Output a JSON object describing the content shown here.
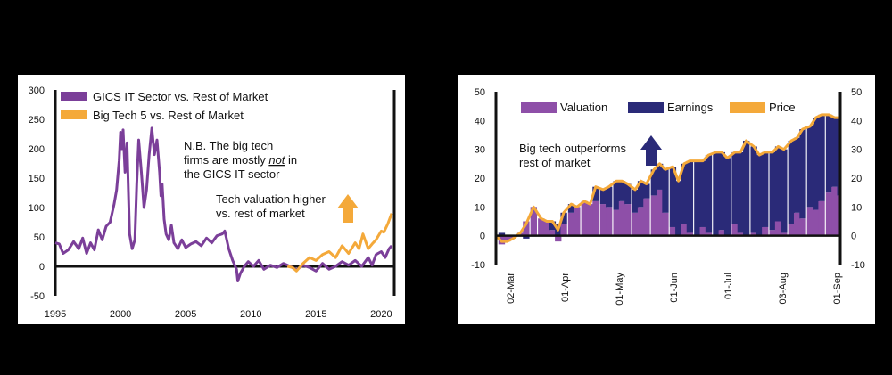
{
  "chart_data": [
    {
      "type": "line",
      "title": "",
      "xlabel": "",
      "ylabel": "",
      "xlim": [
        1995,
        2021
      ],
      "ylim": [
        -50,
        300
      ],
      "yticks": [
        300,
        250,
        200,
        150,
        100,
        50,
        0,
        -50
      ],
      "yticks_right": [
        300,
        250,
        200,
        150,
        100,
        50,
        0,
        -50
      ],
      "xticks": [
        1995,
        2000,
        2005,
        2010,
        2015,
        2020
      ],
      "grid": false,
      "legend_position": "top-left",
      "series": [
        {
          "name": "GICS IT Sector vs. Rest of Market",
          "color": "#7b3f99",
          "x": [
            1995.0,
            1995.3,
            1995.6,
            1996.0,
            1996.4,
            1996.8,
            1997.1,
            1997.4,
            1997.7,
            1998.0,
            1998.3,
            1998.6,
            1998.9,
            1999.2,
            1999.5,
            1999.7,
            1999.9,
            2000.0,
            2000.1,
            2000.2,
            2000.35,
            2000.5,
            2000.7,
            2000.9,
            2001.1,
            2001.25,
            2001.4,
            2001.6,
            2001.8,
            2002.0,
            2002.2,
            2002.4,
            2002.6,
            2002.8,
            2003.0,
            2003.1,
            2003.2,
            2003.35,
            2003.5,
            2003.7,
            2003.9,
            2004.1,
            2004.4,
            2004.7,
            2005.0,
            2005.4,
            2005.8,
            2006.2,
            2006.6,
            2007.0,
            2007.4,
            2007.8,
            2008.0,
            2008.3,
            2008.6,
            2008.9,
            2009.0,
            2009.2,
            2009.5,
            2009.8,
            2010.2,
            2010.6,
            2011.0,
            2011.5,
            2012.0,
            2012.5,
            2013.0,
            2013.5,
            2014.0,
            2014.5,
            2015.0,
            2015.5,
            2016.0,
            2016.5,
            2017.0,
            2017.5,
            2018.0,
            2018.5,
            2019.0,
            2019.3,
            2019.6,
            2020.0,
            2020.3,
            2020.6,
            2020.8
          ],
          "values": [
            40,
            38,
            22,
            28,
            42,
            30,
            48,
            22,
            40,
            28,
            62,
            45,
            68,
            75,
            105,
            130,
            180,
            228,
            200,
            232,
            160,
            210,
            55,
            30,
            45,
            140,
            215,
            160,
            100,
            130,
            190,
            235,
            190,
            215,
            160,
            120,
            140,
            80,
            55,
            45,
            70,
            40,
            30,
            45,
            32,
            38,
            42,
            35,
            48,
            40,
            52,
            55,
            60,
            30,
            10,
            -5,
            -25,
            -12,
            0,
            8,
            0,
            10,
            -5,
            2,
            -2,
            5,
            0,
            -6,
            2,
            -2,
            -8,
            5,
            -5,
            0,
            8,
            2,
            10,
            0,
            15,
            2,
            20,
            25,
            15,
            30,
            35
          ]
        },
        {
          "name": "Big Tech 5 vs. Rest of Market",
          "color": "#f4a93a",
          "x": [
            2012.8,
            2013.2,
            2013.5,
            2014.0,
            2014.5,
            2015.0,
            2015.5,
            2016.0,
            2016.5,
            2017.0,
            2017.5,
            2018.0,
            2018.3,
            2018.6,
            2019.0,
            2019.3,
            2019.6,
            2020.0,
            2020.2,
            2020.5,
            2020.8
          ],
          "values": [
            0,
            -2,
            -8,
            5,
            15,
            10,
            20,
            25,
            15,
            35,
            22,
            40,
            30,
            55,
            30,
            38,
            45,
            60,
            58,
            72,
            90
          ]
        }
      ],
      "annotations": [
        "N.B. The big tech firms are mostly not in the GICS IT sector",
        "Tech valuation higher vs. rest of market"
      ]
    },
    {
      "type": "area",
      "title": "",
      "xlabel": "",
      "ylabel": "",
      "ylim": [
        -10,
        50
      ],
      "yticks": [
        50,
        40,
        30,
        20,
        10,
        0,
        -10
      ],
      "yticks_right": [
        50,
        40,
        30,
        20,
        10,
        0,
        -10
      ],
      "x_tick_labels": [
        "02-Mar",
        "01-Apr",
        "01-May",
        "01-Jun",
        "01-Jul",
        "03-Aug",
        "01-Sep"
      ],
      "grid": false,
      "legend_position": "top",
      "x_days": [
        0,
        3,
        6,
        9,
        13,
        16,
        20,
        24,
        27,
        30,
        33,
        36,
        40,
        43,
        47,
        50,
        53,
        57,
        60,
        64,
        67,
        70,
        74,
        77,
        80,
        84,
        87,
        90,
        94,
        97,
        100,
        103,
        107,
        110,
        113,
        117,
        120,
        123,
        127,
        130,
        133,
        137,
        140,
        143,
        147,
        150,
        153,
        157,
        160,
        163,
        167,
        170,
        173,
        177,
        180,
        183
      ],
      "series": [
        {
          "name": "Valuation",
          "color": "#8e4fa8",
          "values": [
            0,
            -3,
            -2,
            -1,
            1,
            5,
            10,
            6,
            5,
            2,
            -2,
            4,
            8,
            10,
            12,
            11,
            12,
            11,
            10,
            9,
            12,
            11,
            8,
            10,
            13,
            14,
            16,
            8,
            3,
            0,
            4,
            1,
            0,
            3,
            1,
            0,
            2,
            0,
            4,
            1,
            0,
            1,
            0,
            3,
            2,
            5,
            1,
            4,
            8,
            6,
            10,
            9,
            12,
            15,
            17,
            14
          ]
        },
        {
          "name": "Earnings",
          "color": "#2a2a78",
          "values": [
            0,
            1,
            0,
            0,
            0,
            -1,
            0,
            0,
            0,
            3,
            4,
            4,
            3,
            0,
            0,
            0,
            5,
            5,
            7,
            10,
            7,
            7,
            8,
            9,
            5,
            9,
            9,
            15,
            21,
            19,
            21,
            25,
            26,
            23,
            27,
            29,
            27,
            27,
            25,
            28,
            33,
            30,
            28,
            26,
            27,
            26,
            29,
            29,
            26,
            31,
            28,
            32,
            30,
            27,
            24,
            27
          ]
        },
        {
          "name": "Price",
          "color": "#f4a93a",
          "values": [
            0,
            -2,
            -2,
            -1,
            1,
            4,
            10,
            6,
            5,
            5,
            2,
            8,
            11,
            10,
            12,
            11,
            17,
            16,
            17,
            19,
            19,
            18,
            16,
            19,
            18,
            23,
            25,
            23,
            24,
            19,
            25,
            26,
            26,
            26,
            28,
            29,
            29,
            27,
            29,
            29,
            33,
            31,
            28,
            29,
            29,
            31,
            30,
            33,
            34,
            37,
            38,
            41,
            42,
            42,
            41,
            41
          ]
        }
      ],
      "annotations": [
        "Big tech outperforms rest of market"
      ]
    }
  ],
  "left_chart": {
    "legend": {
      "gics": "GICS IT Sector vs. Rest of Market",
      "bigtech": "Big Tech 5 vs. Rest of Market"
    },
    "note_lines": [
      "N.B. The big tech",
      "firms are mostly ",
      " in",
      "the GICS IT sector"
    ],
    "note_emphasis": "not",
    "valuation_lines": [
      "Tech valuation higher",
      "vs. rest of market"
    ]
  },
  "right_chart": {
    "legend": {
      "valuation": "Valuation",
      "earnings": "Earnings",
      "price": "Price"
    },
    "outperform_lines": [
      "Big tech outperforms",
      "rest of market"
    ]
  }
}
